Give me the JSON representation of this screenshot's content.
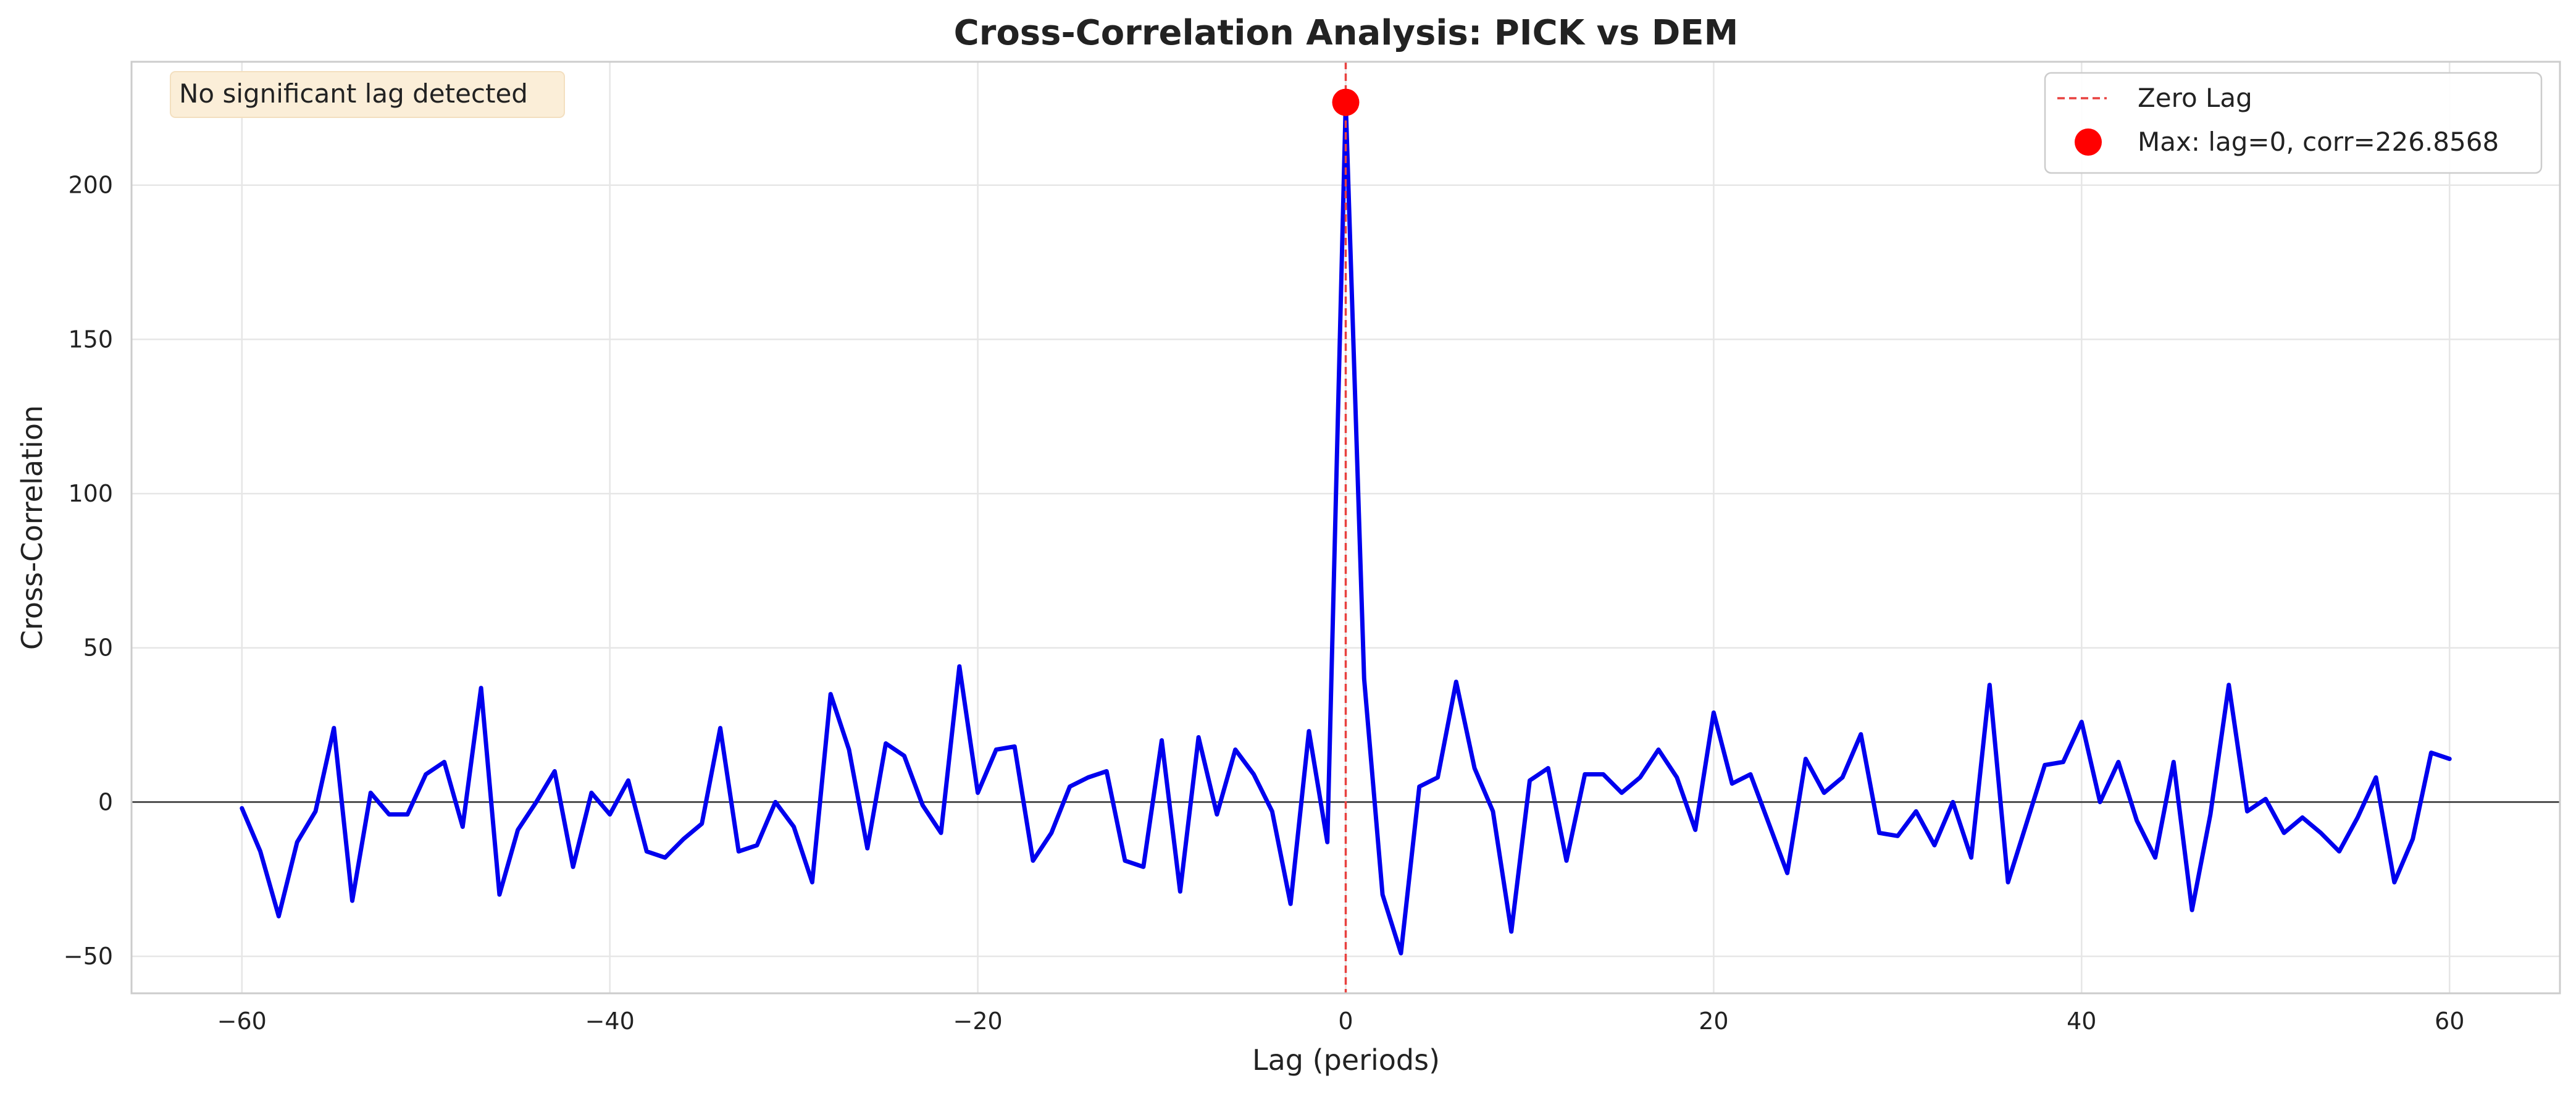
{
  "chart_data": {
    "type": "line",
    "title": "Cross-Correlation Analysis: PICK vs DEM",
    "xlabel": "Lag (periods)",
    "ylabel": "Cross-Correlation",
    "xlim": [
      -66,
      66
    ],
    "ylim": [
      -62,
      240
    ],
    "xticks": [
      -60,
      -40,
      -20,
      0,
      20,
      40,
      60
    ],
    "yticks": [
      -50,
      0,
      50,
      100,
      150,
      200
    ],
    "grid": true,
    "legend_position": "top-right",
    "colors": {
      "series": "#0000ee",
      "zero_lag": "#e8413f",
      "max_marker": "#ff0000",
      "zero_line": "#333333",
      "note_bg": "#fbeed8"
    },
    "series": [
      {
        "name": "",
        "x": [
          -60,
          -59,
          -58,
          -57,
          -56,
          -55,
          -54,
          -53,
          -52,
          -51,
          -50,
          -49,
          -48,
          -47,
          -46,
          -45,
          -44,
          -43,
          -42,
          -41,
          -40,
          -39,
          -38,
          -37,
          -36,
          -35,
          -34,
          -33,
          -32,
          -31,
          -30,
          -29,
          -28,
          -27,
          -26,
          -25,
          -24,
          -23,
          -22,
          -21,
          -20,
          -19,
          -18,
          -17,
          -16,
          -15,
          -14,
          -13,
          -12,
          -11,
          -10,
          -9,
          -8,
          -7,
          -6,
          -5,
          -4,
          -3,
          -2,
          -1,
          0,
          1,
          2,
          3,
          4,
          5,
          6,
          7,
          8,
          9,
          10,
          11,
          12,
          13,
          14,
          15,
          16,
          17,
          18,
          19,
          20,
          21,
          22,
          23,
          24,
          25,
          26,
          27,
          28,
          29,
          30,
          31,
          32,
          33,
          34,
          35,
          36,
          37,
          38,
          39,
          40,
          41,
          42,
          43,
          44,
          45,
          46,
          47,
          48,
          49,
          50,
          51,
          52,
          53,
          54,
          55,
          56,
          57,
          58,
          59,
          60
        ],
        "values": [
          -2,
          -16,
          -37,
          -13,
          -3,
          24,
          -32,
          3,
          -4,
          -4,
          9,
          13,
          -8,
          37,
          -30,
          -9,
          0,
          10,
          -21,
          3,
          -4,
          7,
          -16,
          -18,
          -12,
          -7,
          24,
          -16,
          -14,
          0,
          -8,
          -26,
          35,
          17,
          -15,
          19,
          15,
          -1,
          -10,
          44,
          3,
          17,
          18,
          -19,
          -10,
          5,
          8,
          10,
          -19,
          -21,
          20,
          -29,
          21,
          -4,
          17,
          9,
          -3,
          -33,
          23,
          -13,
          226.8568,
          40,
          -30,
          -49,
          5,
          8,
          39,
          11,
          -3,
          -42,
          7,
          11,
          -19,
          9,
          9,
          3,
          8,
          17,
          8,
          -9,
          29,
          6,
          9,
          -7,
          -23,
          14,
          3,
          8,
          22,
          -10,
          -11,
          -3,
          -14,
          0,
          -18,
          38,
          -26,
          -7,
          12,
          13,
          26,
          0,
          13,
          -6,
          -18,
          13,
          -35,
          -4,
          38,
          -3,
          1,
          -10,
          -5,
          -10,
          -16,
          -5,
          8,
          -26,
          -12,
          16,
          14
        ]
      }
    ],
    "reference_line": {
      "x": 0,
      "label": "Zero Lag"
    },
    "max_point": {
      "x": 0,
      "y": 226.8568,
      "label": "Max: lag=0, corr=226.8568"
    },
    "annotation": "No significant lag detected"
  }
}
